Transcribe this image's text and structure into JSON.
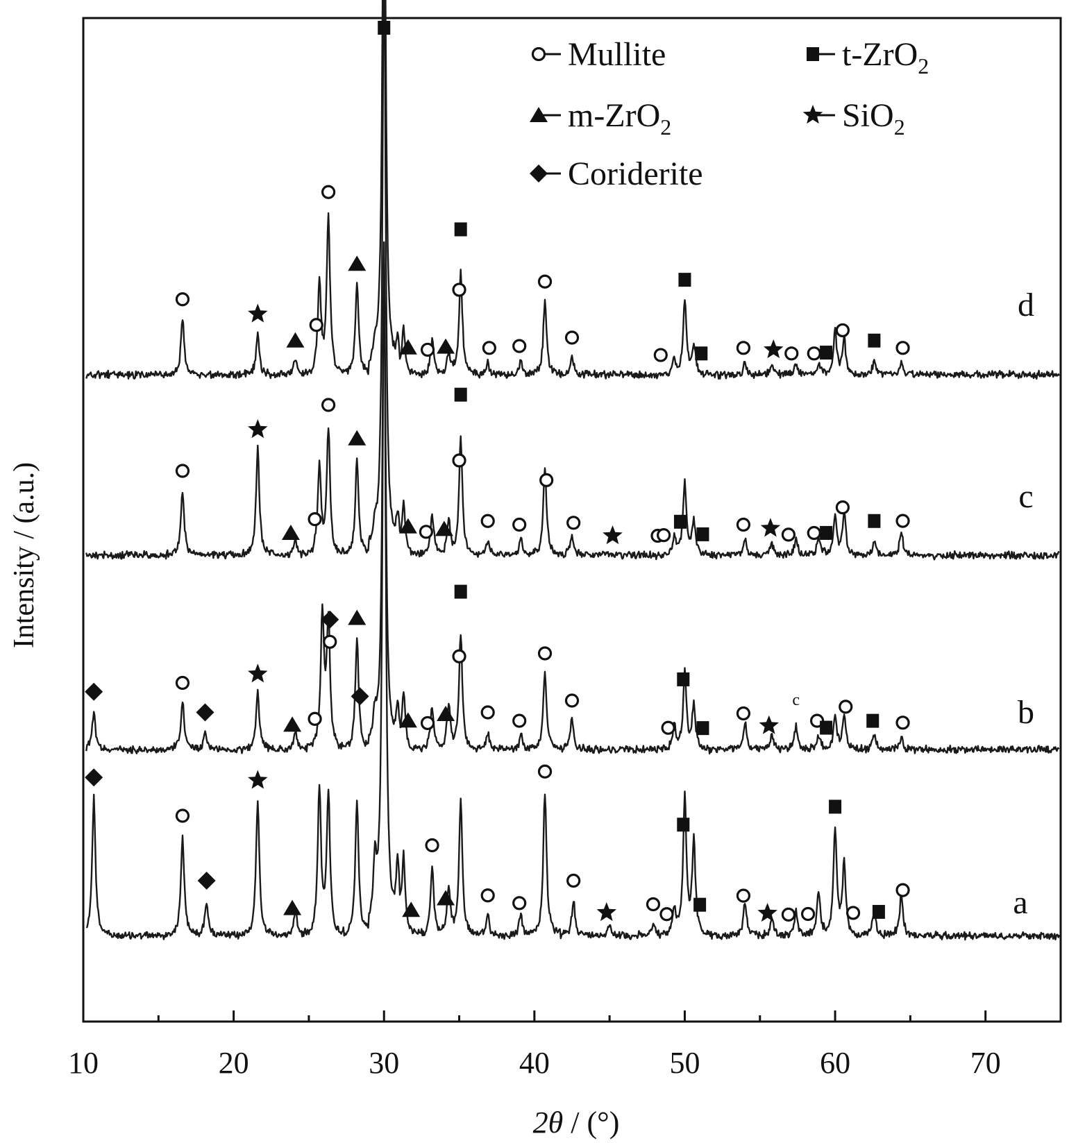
{
  "chart_data": {
    "type": "line",
    "title": "",
    "xlabel": {
      "italic": "2θ",
      "rest": " / (°)"
    },
    "ylabel": "Intensity / (a.u.)",
    "xlim": [
      10,
      75
    ],
    "xticks": [
      10,
      20,
      30,
      40,
      50,
      60,
      70
    ],
    "y_ticks_shown": false,
    "grid": false,
    "legend_position": "top-right",
    "legend": [
      {
        "name": "Mullite",
        "marker": "open-circle"
      },
      {
        "name": "t-ZrO",
        "sub": "2",
        "marker": "filled-square"
      },
      {
        "name": "m-ZrO",
        "sub": "2",
        "marker": "filled-triangle"
      },
      {
        "name": "SiO",
        "sub": "2",
        "marker": "star"
      },
      {
        "name": "Coriderite",
        "marker": "filled-diamond"
      }
    ],
    "series": [
      {
        "name": "a",
        "noise": 8,
        "peaks": [
          [
            10.7,
            235
          ],
          [
            16.6,
            170
          ],
          [
            18.2,
            60
          ],
          [
            21.6,
            230
          ],
          [
            24.1,
            45
          ],
          [
            25.7,
            250
          ],
          [
            26.3,
            240
          ],
          [
            28.2,
            230
          ],
          [
            29.4,
            110
          ],
          [
            30.0,
            1160
          ],
          [
            30.9,
            100
          ],
          [
            31.3,
            130
          ],
          [
            33.2,
            120
          ],
          [
            34.3,
            80
          ],
          [
            35.1,
            230
          ],
          [
            36.9,
            35
          ],
          [
            39.1,
            35
          ],
          [
            40.7,
            245
          ],
          [
            42.6,
            60
          ],
          [
            45.0,
            20
          ],
          [
            47.9,
            20
          ],
          [
            49.3,
            45
          ],
          [
            50.0,
            235
          ],
          [
            50.6,
            160
          ],
          [
            54.0,
            55
          ],
          [
            55.8,
            30
          ],
          [
            57.4,
            40
          ],
          [
            58.9,
            75
          ],
          [
            60.0,
            180
          ],
          [
            60.6,
            120
          ],
          [
            62.6,
            45
          ],
          [
            64.4,
            70
          ]
        ]
      },
      {
        "name": "b",
        "noise": 8,
        "peaks": [
          [
            10.7,
            65
          ],
          [
            16.6,
            80
          ],
          [
            18.1,
            30
          ],
          [
            21.6,
            95
          ],
          [
            24.1,
            30
          ],
          [
            25.9,
            230
          ],
          [
            26.3,
            215
          ],
          [
            28.2,
            190
          ],
          [
            29.4,
            50
          ],
          [
            30.0,
            860
          ],
          [
            30.9,
            55
          ],
          [
            31.3,
            90
          ],
          [
            33.2,
            75
          ],
          [
            34.3,
            75
          ],
          [
            35.1,
            195
          ],
          [
            36.9,
            30
          ],
          [
            39.1,
            25
          ],
          [
            40.7,
            130
          ],
          [
            42.5,
            50
          ],
          [
            49.3,
            40
          ],
          [
            50.0,
            130
          ],
          [
            50.6,
            75
          ],
          [
            54.0,
            45
          ],
          [
            55.8,
            25
          ],
          [
            57.4,
            40
          ],
          [
            58.9,
            25
          ],
          [
            60.0,
            55
          ],
          [
            60.6,
            60
          ],
          [
            62.6,
            25
          ],
          [
            64.4,
            20
          ]
        ]
      },
      {
        "name": "c",
        "noise": 8,
        "peaks": [
          [
            16.6,
            110
          ],
          [
            21.6,
            180
          ],
          [
            24.1,
            30
          ],
          [
            25.7,
            150
          ],
          [
            26.3,
            215
          ],
          [
            28.2,
            165
          ],
          [
            29.4,
            35
          ],
          [
            30.0,
            1010
          ],
          [
            30.9,
            45
          ],
          [
            31.3,
            90
          ],
          [
            33.2,
            70
          ],
          [
            34.3,
            60
          ],
          [
            35.1,
            200
          ],
          [
            36.9,
            25
          ],
          [
            39.1,
            30
          ],
          [
            40.7,
            150
          ],
          [
            42.5,
            35
          ],
          [
            49.3,
            30
          ],
          [
            50.0,
            125
          ],
          [
            50.6,
            55
          ],
          [
            54.0,
            30
          ],
          [
            55.8,
            20
          ],
          [
            57.4,
            30
          ],
          [
            58.9,
            30
          ],
          [
            60.0,
            65
          ],
          [
            60.6,
            70
          ],
          [
            62.6,
            25
          ],
          [
            64.4,
            40
          ]
        ]
      },
      {
        "name": "d",
        "noise": 8,
        "peaks": [
          [
            16.6,
            95
          ],
          [
            21.6,
            70
          ],
          [
            24.1,
            25
          ],
          [
            25.7,
            150
          ],
          [
            26.3,
            270
          ],
          [
            28.2,
            155
          ],
          [
            29.4,
            30
          ],
          [
            30.0,
            1010
          ],
          [
            30.9,
            40
          ],
          [
            31.3,
            75
          ],
          [
            33.2,
            60
          ],
          [
            34.3,
            35
          ],
          [
            35.1,
            175
          ],
          [
            36.9,
            20
          ],
          [
            39.1,
            25
          ],
          [
            40.7,
            125
          ],
          [
            42.5,
            30
          ],
          [
            49.3,
            25
          ],
          [
            50.0,
            125
          ],
          [
            50.6,
            50
          ],
          [
            54.0,
            20
          ],
          [
            55.8,
            15
          ],
          [
            57.4,
            20
          ],
          [
            58.9,
            20
          ],
          [
            60.0,
            75
          ],
          [
            60.6,
            60
          ],
          [
            62.6,
            25
          ],
          [
            64.4,
            20
          ]
        ]
      }
    ],
    "phase_markers": [
      {
        "s": "d",
        "t": "circle",
        "x": 16.6
      },
      {
        "s": "d",
        "t": "star",
        "x": 21.6
      },
      {
        "s": "d",
        "t": "triangle",
        "x": 24.1
      },
      {
        "s": "d",
        "t": "circle",
        "x": 25.5
      },
      {
        "s": "d",
        "t": "circle",
        "x": 26.3
      },
      {
        "s": "d",
        "t": "triangle",
        "x": 28.2
      },
      {
        "s": "d",
        "t": "square",
        "x": 30.0
      },
      {
        "s": "d",
        "t": "triangle",
        "x": 31.6
      },
      {
        "s": "d",
        "t": "circle",
        "x": 32.9
      },
      {
        "s": "d",
        "t": "triangle",
        "x": 34.1
      },
      {
        "s": "d",
        "t": "circle",
        "x": 35.0
      },
      {
        "s": "d",
        "t": "square",
        "x": 35.1
      },
      {
        "s": "d",
        "t": "circle",
        "x": 37.0
      },
      {
        "s": "d",
        "t": "circle",
        "x": 39.0
      },
      {
        "s": "d",
        "t": "circle",
        "x": 40.7
      },
      {
        "s": "d",
        "t": "circle",
        "x": 42.5
      },
      {
        "s": "d",
        "t": "circle",
        "x": 48.4
      },
      {
        "s": "d",
        "t": "square",
        "x": 50.0
      },
      {
        "s": "d",
        "t": "square",
        "x": 51.1
      },
      {
        "s": "d",
        "t": "circle",
        "x": 53.9
      },
      {
        "s": "d",
        "t": "star",
        "x": 55.9
      },
      {
        "s": "d",
        "t": "circle",
        "x": 57.1
      },
      {
        "s": "d",
        "t": "circle",
        "x": 58.6
      },
      {
        "s": "d",
        "t": "square",
        "x": 59.4
      },
      {
        "s": "d",
        "t": "circle",
        "x": 60.5
      },
      {
        "s": "d",
        "t": "square",
        "x": 62.6
      },
      {
        "s": "d",
        "t": "circle",
        "x": 64.5
      },
      {
        "s": "c",
        "t": "circle",
        "x": 16.6
      },
      {
        "s": "c",
        "t": "star",
        "x": 21.6
      },
      {
        "s": "c",
        "t": "triangle",
        "x": 23.8
      },
      {
        "s": "c",
        "t": "circle",
        "x": 25.4
      },
      {
        "s": "c",
        "t": "circle",
        "x": 26.3
      },
      {
        "s": "c",
        "t": "triangle",
        "x": 28.2
      },
      {
        "s": "c",
        "t": "triangle",
        "x": 31.6
      },
      {
        "s": "c",
        "t": "circle",
        "x": 32.8
      },
      {
        "s": "c",
        "t": "triangle",
        "x": 34.0
      },
      {
        "s": "c",
        "t": "circle",
        "x": 35.0
      },
      {
        "s": "c",
        "t": "square",
        "x": 35.1
      },
      {
        "s": "c",
        "t": "circle",
        "x": 36.9
      },
      {
        "s": "c",
        "t": "circle",
        "x": 39.0
      },
      {
        "s": "c",
        "t": "circle",
        "x": 40.8
      },
      {
        "s": "c",
        "t": "circle",
        "x": 42.6
      },
      {
        "s": "c",
        "t": "star",
        "x": 45.2
      },
      {
        "s": "c",
        "t": "circle",
        "x": 48.2
      },
      {
        "s": "c",
        "t": "circle",
        "x": 48.6
      },
      {
        "s": "c",
        "t": "square",
        "x": 49.7
      },
      {
        "s": "c",
        "t": "square",
        "x": 51.2
      },
      {
        "s": "c",
        "t": "circle",
        "x": 53.9
      },
      {
        "s": "c",
        "t": "star",
        "x": 55.7
      },
      {
        "s": "c",
        "t": "circle",
        "x": 56.9
      },
      {
        "s": "c",
        "t": "circle",
        "x": 58.6
      },
      {
        "s": "c",
        "t": "square",
        "x": 59.4
      },
      {
        "s": "c",
        "t": "circle",
        "x": 60.5
      },
      {
        "s": "c",
        "t": "square",
        "x": 62.6
      },
      {
        "s": "c",
        "t": "circle",
        "x": 64.5
      },
      {
        "s": "b",
        "t": "diamond",
        "x": 10.7
      },
      {
        "s": "b",
        "t": "circle",
        "x": 16.6
      },
      {
        "s": "b",
        "t": "diamond",
        "x": 18.1
      },
      {
        "s": "b",
        "t": "star",
        "x": 21.6
      },
      {
        "s": "b",
        "t": "triangle",
        "x": 23.9
      },
      {
        "s": "b",
        "t": "circle",
        "x": 25.4
      },
      {
        "s": "b",
        "t": "circle",
        "x": 26.4
      },
      {
        "s": "b",
        "t": "diamond",
        "x": 26.4
      },
      {
        "s": "b",
        "t": "triangle",
        "x": 28.2
      },
      {
        "s": "b",
        "t": "diamond",
        "x": 28.4
      },
      {
        "s": "b",
        "t": "triangle",
        "x": 31.6
      },
      {
        "s": "b",
        "t": "circle",
        "x": 32.9
      },
      {
        "s": "b",
        "t": "triangle",
        "x": 34.1
      },
      {
        "s": "b",
        "t": "circle",
        "x": 35.0
      },
      {
        "s": "b",
        "t": "square",
        "x": 35.1
      },
      {
        "s": "b",
        "t": "circle",
        "x": 36.9
      },
      {
        "s": "b",
        "t": "circle",
        "x": 39.0
      },
      {
        "s": "b",
        "t": "circle",
        "x": 40.7
      },
      {
        "s": "b",
        "t": "circle",
        "x": 42.5
      },
      {
        "s": "b",
        "t": "circle",
        "x": 48.9
      },
      {
        "s": "b",
        "t": "square",
        "x": 49.9
      },
      {
        "s": "b",
        "t": "square",
        "x": 51.2
      },
      {
        "s": "b",
        "t": "circle",
        "x": 53.9
      },
      {
        "s": "b",
        "t": "star",
        "x": 55.6
      },
      {
        "s": "b",
        "t": "circle",
        "x": 58.8
      },
      {
        "s": "b",
        "t": "square",
        "x": 59.4
      },
      {
        "s": "b",
        "t": "circle",
        "x": 60.7
      },
      {
        "s": "b",
        "t": "square",
        "x": 62.5
      },
      {
        "s": "b",
        "t": "circle",
        "x": 64.5
      },
      {
        "s": "a",
        "t": "diamond",
        "x": 10.7
      },
      {
        "s": "a",
        "t": "circle",
        "x": 16.6
      },
      {
        "s": "a",
        "t": "diamond",
        "x": 18.2
      },
      {
        "s": "a",
        "t": "star",
        "x": 21.6
      },
      {
        "s": "a",
        "t": "triangle",
        "x": 23.9
      },
      {
        "s": "a",
        "t": "triangle",
        "x": 31.8
      },
      {
        "s": "a",
        "t": "circle",
        "x": 33.2
      },
      {
        "s": "a",
        "t": "triangle",
        "x": 34.1
      },
      {
        "s": "a",
        "t": "circle",
        "x": 36.9
      },
      {
        "s": "a",
        "t": "circle",
        "x": 39.0
      },
      {
        "s": "a",
        "t": "circle",
        "x": 40.7
      },
      {
        "s": "a",
        "t": "circle",
        "x": 42.6
      },
      {
        "s": "a",
        "t": "star",
        "x": 44.8
      },
      {
        "s": "a",
        "t": "circle",
        "x": 47.9
      },
      {
        "s": "a",
        "t": "circle",
        "x": 48.8
      },
      {
        "s": "a",
        "t": "square",
        "x": 49.9
      },
      {
        "s": "a",
        "t": "square",
        "x": 51.0
      },
      {
        "s": "a",
        "t": "circle",
        "x": 53.9
      },
      {
        "s": "a",
        "t": "star",
        "x": 55.5
      },
      {
        "s": "a",
        "t": "circle",
        "x": 56.9
      },
      {
        "s": "a",
        "t": "circle",
        "x": 58.2
      },
      {
        "s": "a",
        "t": "square",
        "x": 60.0
      },
      {
        "s": "a",
        "t": "circle",
        "x": 61.2
      },
      {
        "s": "a",
        "t": "square",
        "x": 62.9
      },
      {
        "s": "a",
        "t": "circle",
        "x": 64.5
      }
    ],
    "stray_text": [
      {
        "series": "b",
        "x": 57.4,
        "text": "c"
      }
    ],
    "colors": {
      "line": "#1a1a1a",
      "axes": "#111111",
      "marker": "#111111",
      "background": "#ffffff"
    }
  }
}
